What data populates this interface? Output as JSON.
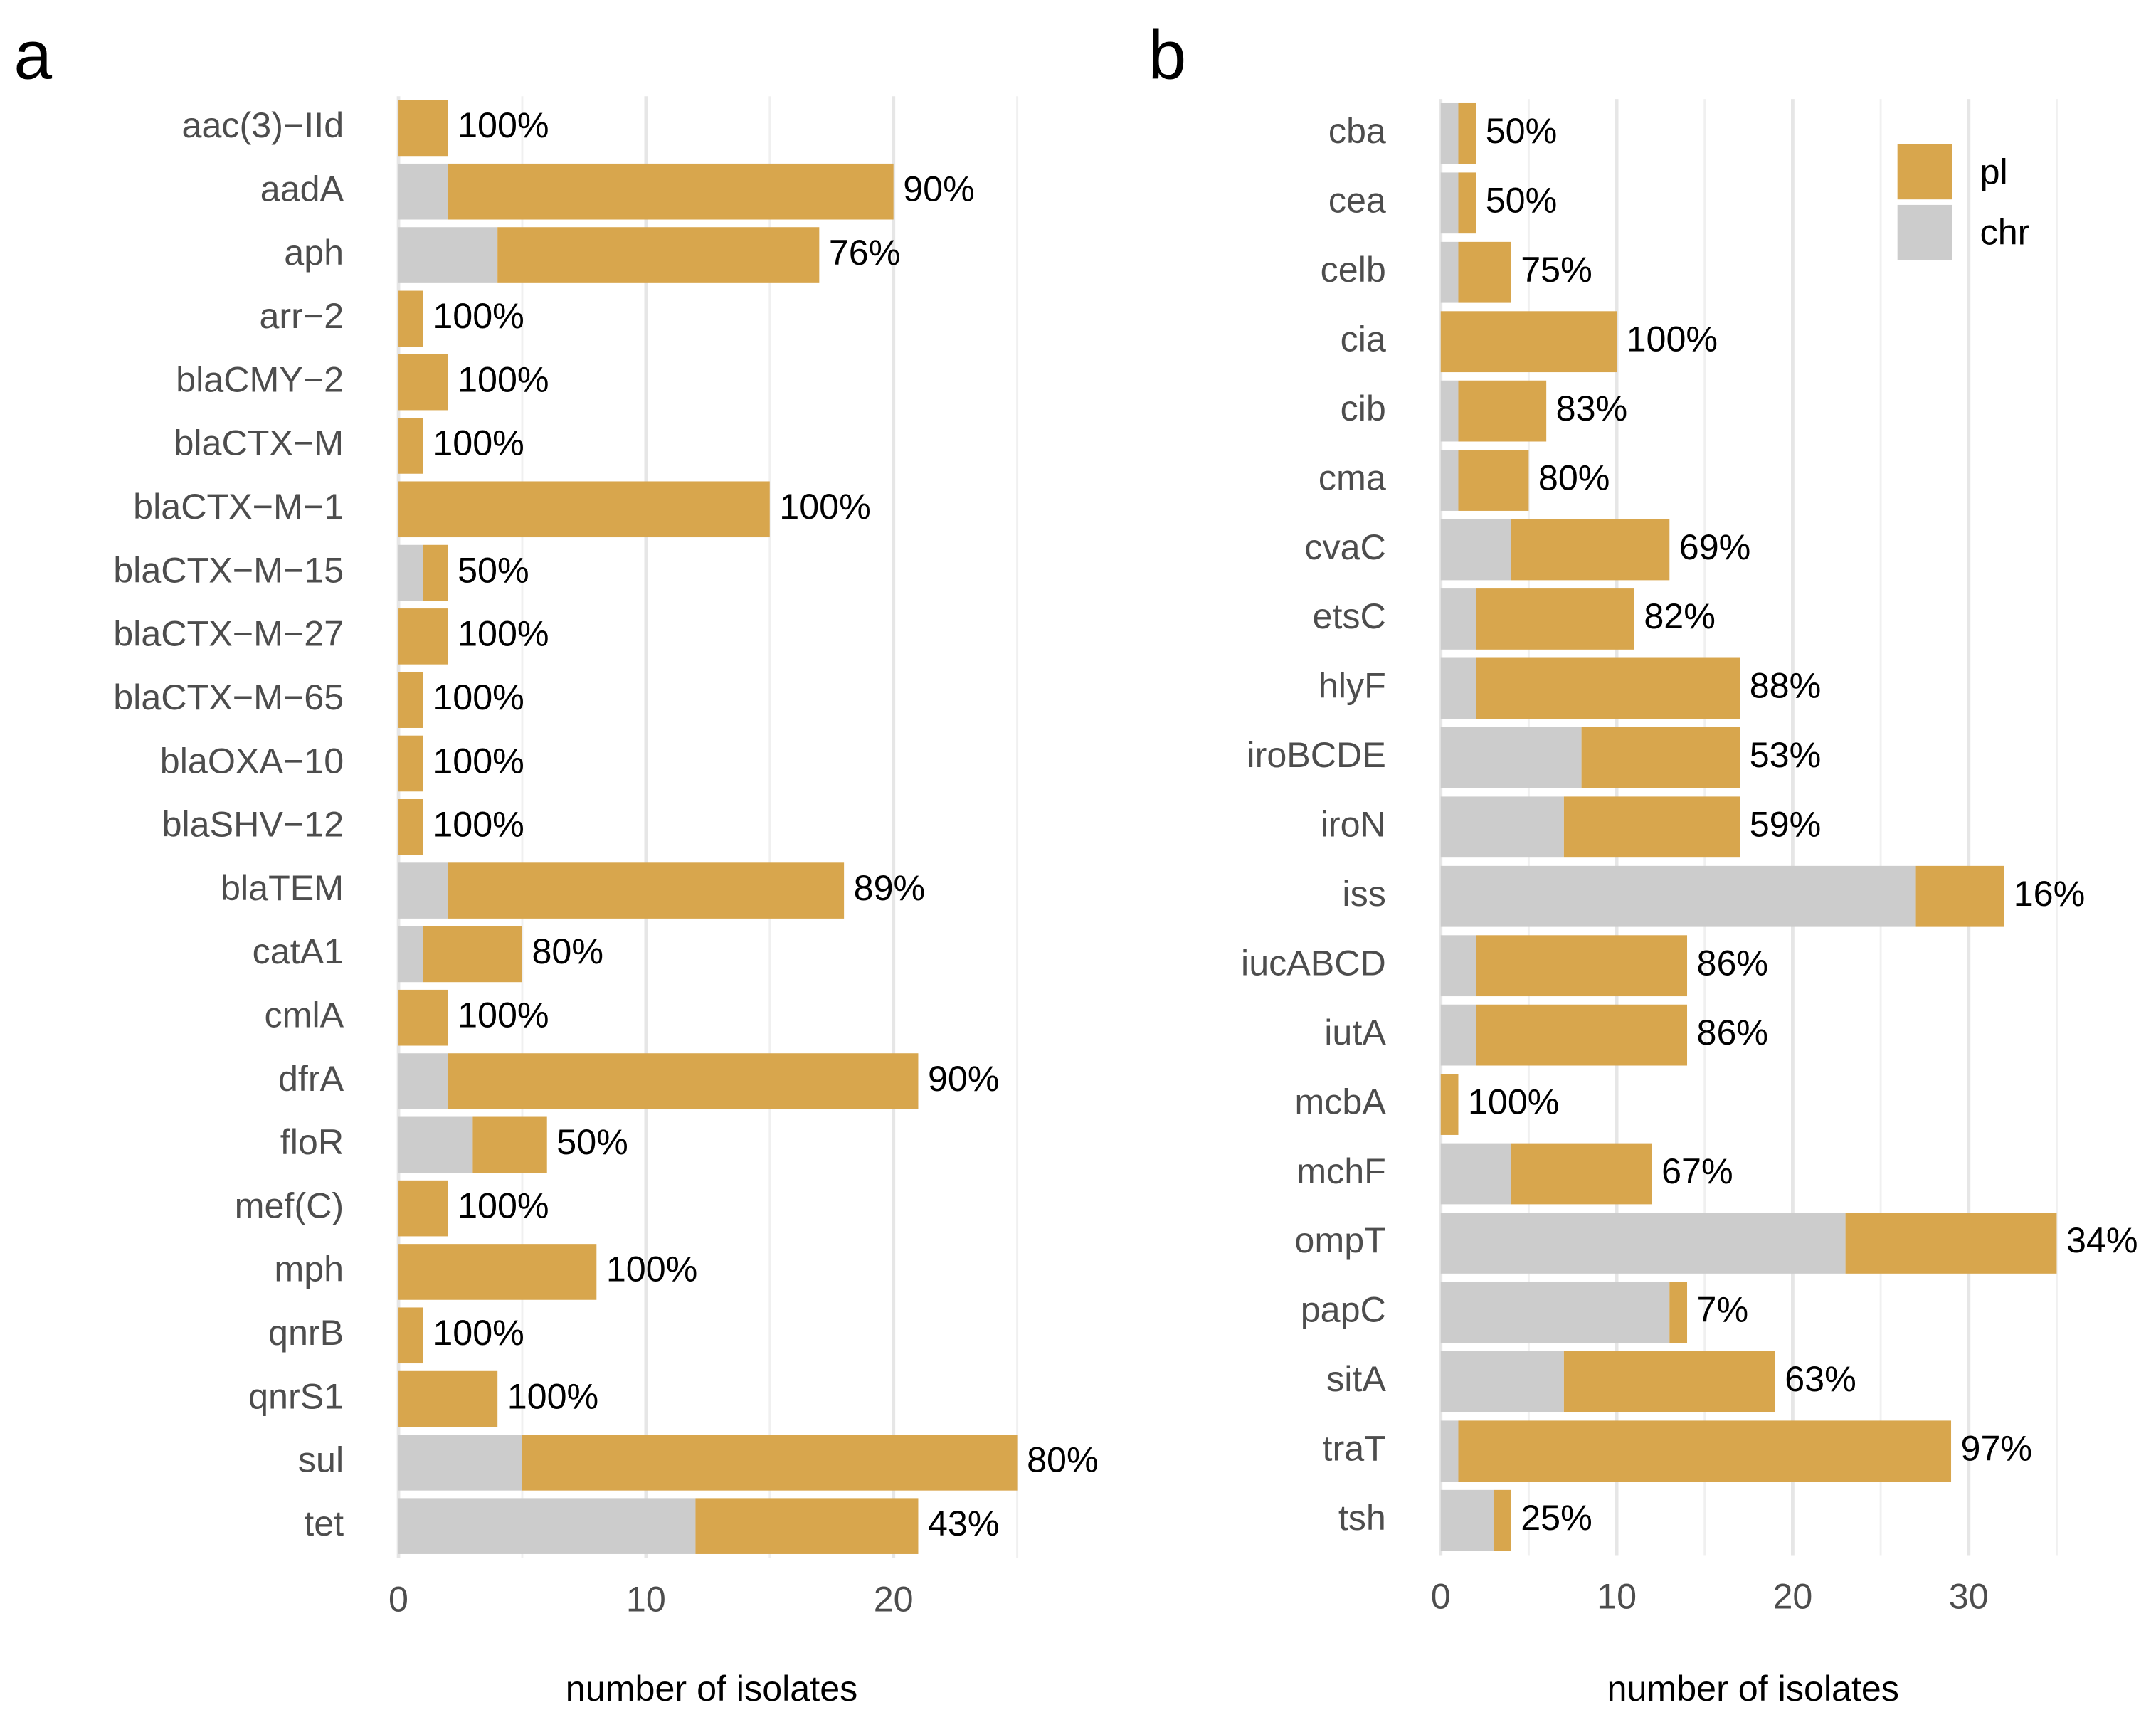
{
  "chart_data": [
    {
      "type": "bar",
      "orientation": "horizontal",
      "stacked": true,
      "panel": "a",
      "xlabel": "number of isolates",
      "categories": [
        "aac(3)−IId",
        "aadA",
        "aph",
        "arr−2",
        "blaCMY−2",
        "blaCTX−M",
        "blaCTX−M−1",
        "blaCTX−M−15",
        "blaCTX−M−27",
        "blaCTX−M−65",
        "blaOXA−10",
        "blaSHV−12",
        "blaTEM",
        "catA1",
        "cmlA",
        "dfrA",
        "floR",
        "mef(C)",
        "mph",
        "qnrB",
        "qnrS1",
        "sul",
        "tet"
      ],
      "series": [
        {
          "name": "chr",
          "color": "#cccccc",
          "values": [
            0,
            2,
            4,
            0,
            0,
            0,
            0,
            1,
            0,
            0,
            0,
            0,
            2,
            1,
            0,
            2,
            3,
            0,
            0,
            0,
            0,
            5,
            12
          ]
        },
        {
          "name": "pl",
          "color": "#d8a64d",
          "values": [
            2,
            18,
            13,
            1,
            2,
            1,
            15,
            1,
            2,
            1,
            1,
            1,
            16,
            4,
            2,
            19,
            3,
            2,
            8,
            1,
            4,
            20,
            9
          ]
        }
      ],
      "labels": [
        "100%",
        "90%",
        "76%",
        "100%",
        "100%",
        "100%",
        "100%",
        "50%",
        "100%",
        "100%",
        "100%",
        "100%",
        "89%",
        "80%",
        "100%",
        "90%",
        "50%",
        "100%",
        "100%",
        "100%",
        "100%",
        "80%",
        "43%"
      ],
      "xlim": [
        -1.1,
        26.4
      ],
      "xticks": [
        0,
        10,
        20
      ],
      "xminor": [
        5,
        15,
        25
      ],
      "grid": true,
      "legend": null
    },
    {
      "type": "bar",
      "orientation": "horizontal",
      "stacked": true,
      "panel": "b",
      "xlabel": "number of isolates",
      "categories": [
        "cba",
        "cea",
        "celb",
        "cia",
        "cib",
        "cma",
        "cvaC",
        "etsC",
        "hlyF",
        "iroBCDE",
        "iroN",
        "iss",
        "iucABCD",
        "iutA",
        "mcbA",
        "mchF",
        "ompT",
        "papC",
        "sitA",
        "traT",
        "tsh"
      ],
      "series": [
        {
          "name": "chr",
          "color": "#cccccc",
          "values": [
            1,
            1,
            1,
            0,
            1,
            1,
            4,
            2,
            2,
            8,
            7,
            27,
            2,
            2,
            0,
            4,
            23,
            13,
            7,
            1,
            3
          ]
        },
        {
          "name": "pl",
          "color": "#d8a64d",
          "values": [
            1,
            1,
            3,
            10,
            5,
            4,
            9,
            9,
            15,
            9,
            10,
            5,
            12,
            12,
            1,
            8,
            12,
            1,
            12,
            28,
            1
          ]
        }
      ],
      "labels": [
        "50%",
        "50%",
        "75%",
        "100%",
        "83%",
        "80%",
        "69%",
        "82%",
        "88%",
        "53%",
        "59%",
        "16%",
        "86%",
        "86%",
        "100%",
        "67%",
        "34%",
        "7%",
        "63%",
        "97%",
        "25%"
      ],
      "xlim": [
        -1,
        36.5
      ],
      "xticks": [
        0,
        10,
        20,
        30
      ],
      "xminor": [
        5,
        15,
        25,
        35
      ],
      "grid": true,
      "legend": "top-right"
    }
  ]
}
